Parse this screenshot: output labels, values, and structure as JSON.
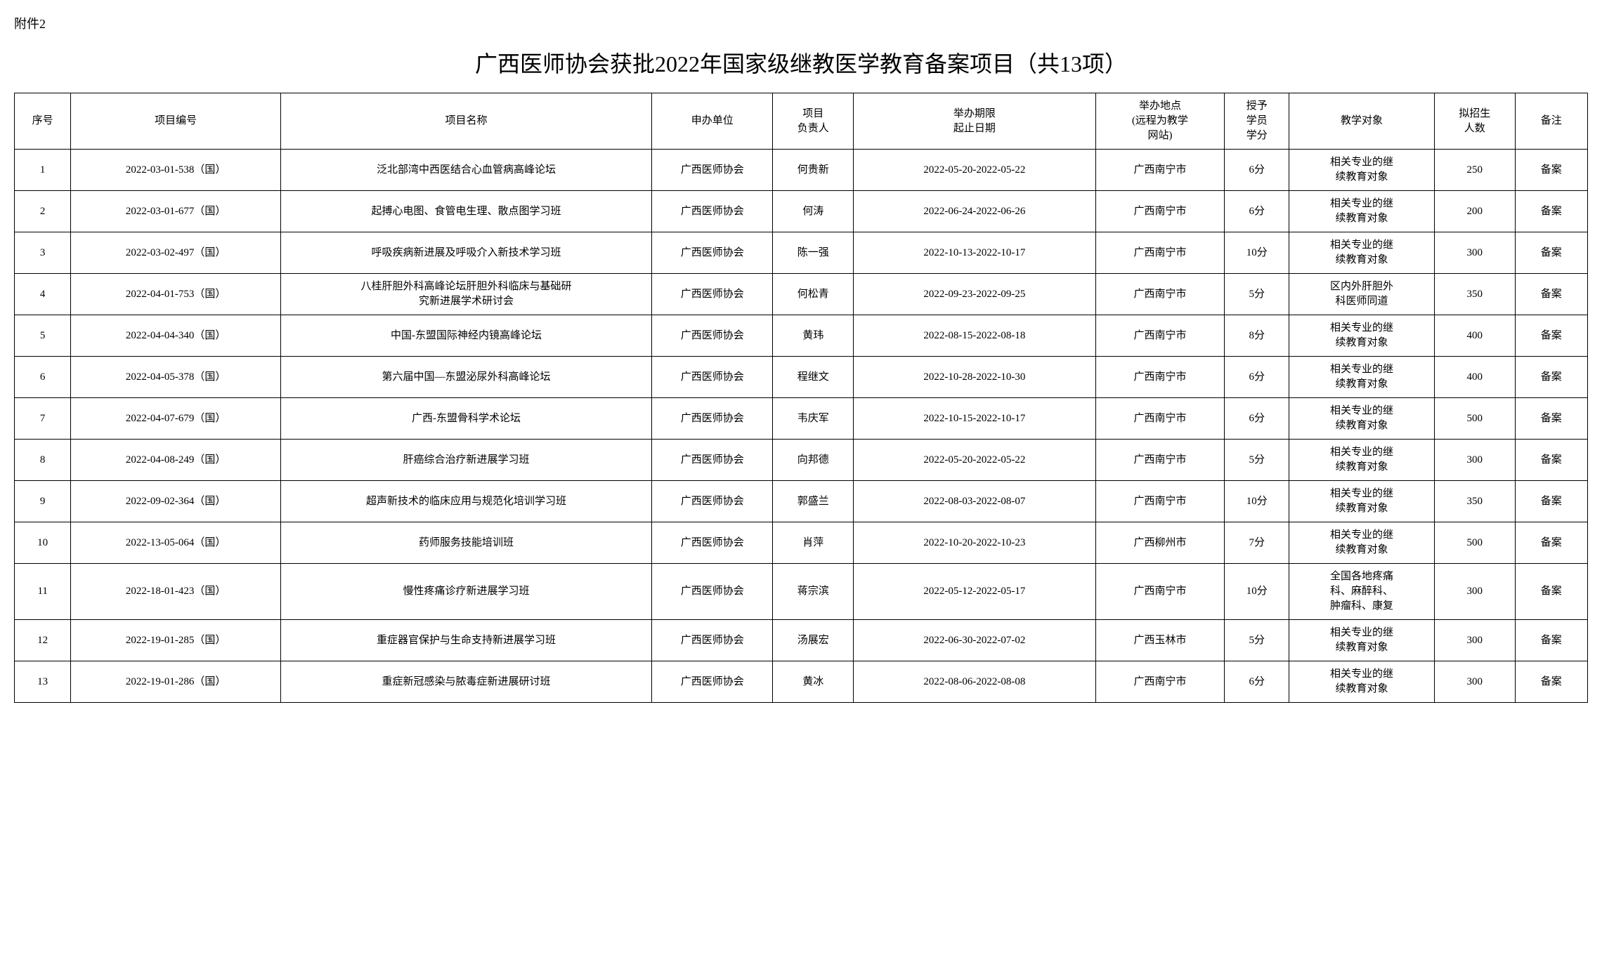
{
  "attachment_label": "附件2",
  "title": "广西医师协会获批2022年国家级继教医学教育备案项目（共13项）",
  "columns": [
    "序号",
    "项目编号",
    "项目名称",
    "申办单位",
    "项目\n负责人",
    "举办期限\n起止日期",
    "举办地点\n(远程为教学\n网站)",
    "授予\n学员\n学分",
    "教学对象",
    "拟招生\n人数",
    "备注"
  ],
  "rows": [
    [
      "1",
      "2022-03-01-538（国）",
      "泛北部湾中西医结合心血管病高峰论坛",
      "广西医师协会",
      "何贵新",
      "2022-05-20-2022-05-22",
      "广西南宁市",
      "6分",
      "相关专业的继\n续教育对象",
      "250",
      "备案"
    ],
    [
      "2",
      "2022-03-01-677（国）",
      "起搏心电图、食管电生理、散点图学习班",
      "广西医师协会",
      "何涛",
      "2022-06-24-2022-06-26",
      "广西南宁市",
      "6分",
      "相关专业的继\n续教育对象",
      "200",
      "备案"
    ],
    [
      "3",
      "2022-03-02-497（国）",
      "呼吸疾病新进展及呼吸介入新技术学习班",
      "广西医师协会",
      "陈一强",
      "2022-10-13-2022-10-17",
      "广西南宁市",
      "10分",
      "相关专业的继\n续教育对象",
      "300",
      "备案"
    ],
    [
      "4",
      "2022-04-01-753（国）",
      "八桂肝胆外科高峰论坛肝胆外科临床与基础研\n究新进展学术研讨会",
      "广西医师协会",
      "何松青",
      "2022-09-23-2022-09-25",
      "广西南宁市",
      "5分",
      "区内外肝胆外\n科医师同道",
      "350",
      "备案"
    ],
    [
      "5",
      "2022-04-04-340（国）",
      "中国-东盟国际神经内镜高峰论坛",
      "广西医师协会",
      "黄玮",
      "2022-08-15-2022-08-18",
      "广西南宁市",
      "8分",
      "相关专业的继\n续教育对象",
      "400",
      "备案"
    ],
    [
      "6",
      "2022-04-05-378（国）",
      "第六届中国—东盟泌尿外科高峰论坛",
      "广西医师协会",
      "程继文",
      "2022-10-28-2022-10-30",
      "广西南宁市",
      "6分",
      "相关专业的继\n续教育对象",
      "400",
      "备案"
    ],
    [
      "7",
      "2022-04-07-679（国）",
      "广西-东盟骨科学术论坛",
      "广西医师协会",
      "韦庆军",
      "2022-10-15-2022-10-17",
      "广西南宁市",
      "6分",
      "相关专业的继\n续教育对象",
      "500",
      "备案"
    ],
    [
      "8",
      "2022-04-08-249（国）",
      "肝癌综合治疗新进展学习班",
      "广西医师协会",
      "向邦德",
      "2022-05-20-2022-05-22",
      "广西南宁市",
      "5分",
      "相关专业的继\n续教育对象",
      "300",
      "备案"
    ],
    [
      "9",
      "2022-09-02-364（国）",
      "超声新技术的临床应用与规范化培训学习班",
      "广西医师协会",
      "郭盛兰",
      "2022-08-03-2022-08-07",
      "广西南宁市",
      "10分",
      "相关专业的继\n续教育对象",
      "350",
      "备案"
    ],
    [
      "10",
      "2022-13-05-064（国）",
      "药师服务技能培训班",
      "广西医师协会",
      "肖萍",
      "2022-10-20-2022-10-23",
      "广西柳州市",
      "7分",
      "相关专业的继\n续教育对象",
      "500",
      "备案"
    ],
    [
      "11",
      "2022-18-01-423（国）",
      "慢性疼痛诊疗新进展学习班",
      "广西医师协会",
      "蒋宗滨",
      "2022-05-12-2022-05-17",
      "广西南宁市",
      "10分",
      "全国各地疼痛\n科、麻醉科、\n肿瘤科、康复",
      "300",
      "备案"
    ],
    [
      "12",
      "2022-19-01-285（国）",
      "重症器官保护与生命支持新进展学习班",
      "广西医师协会",
      "汤展宏",
      "2022-06-30-2022-07-02",
      "广西玉林市",
      "5分",
      "相关专业的继\n续教育对象",
      "300",
      "备案"
    ],
    [
      "13",
      "2022-19-01-286（国）",
      "重症新冠感染与脓毒症新进展研讨班",
      "广西医师协会",
      "黄冰",
      "2022-08-06-2022-08-08",
      "广西南宁市",
      "6分",
      "相关专业的继\n续教育对象",
      "300",
      "备案"
    ]
  ],
  "col_classes": [
    "col-seq",
    "col-code",
    "col-name",
    "col-org",
    "col-leader",
    "col-period",
    "col-location",
    "col-credit",
    "col-target",
    "col-count",
    "col-note"
  ]
}
